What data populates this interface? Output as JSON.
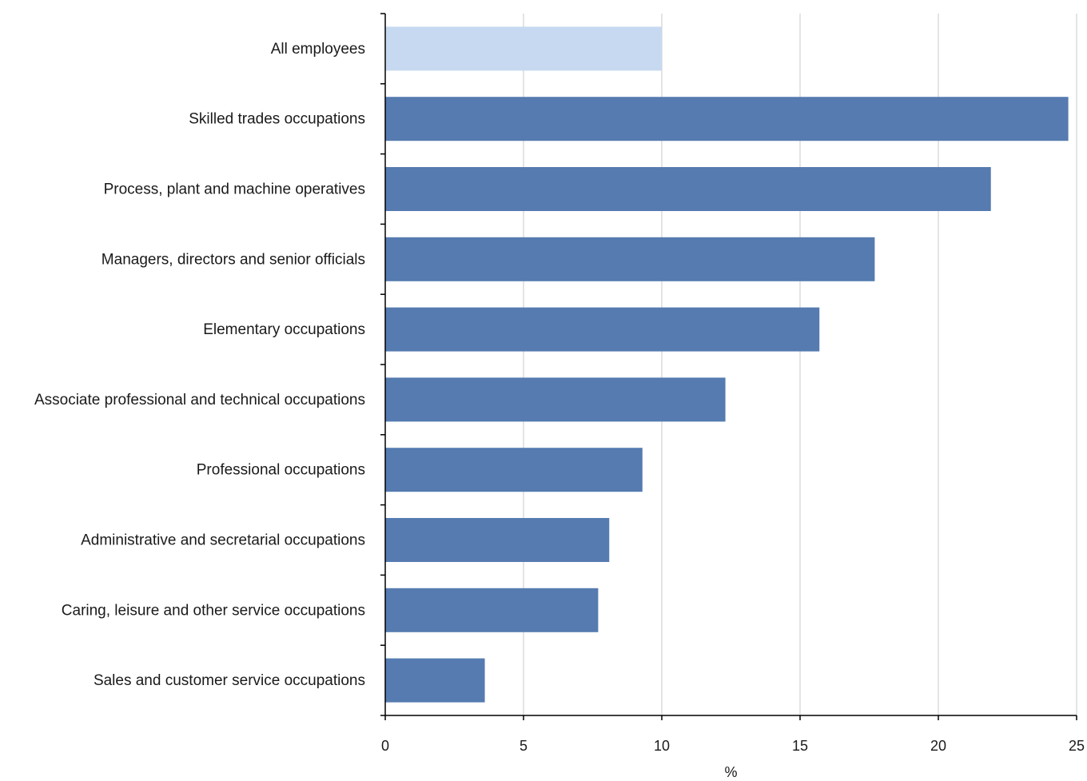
{
  "chart_data": {
    "type": "bar",
    "orientation": "horizontal",
    "categories": [
      "All employees",
      "Skilled trades occupations",
      "Process, plant and machine operatives",
      "Managers, directors and senior officials",
      "Elementary occupations",
      "Associate professional and technical occupations",
      "Professional occupations",
      "Administrative and secretarial occupations",
      "Caring, leisure and other service occupations",
      "Sales and customer service occupations"
    ],
    "values": [
      10.0,
      24.7,
      21.9,
      17.7,
      15.7,
      12.3,
      9.3,
      8.1,
      7.7,
      3.6
    ],
    "colors": [
      "#c6d9f0",
      "#557bb0",
      "#557bb0",
      "#557bb0",
      "#557bb0",
      "#557bb0",
      "#557bb0",
      "#557bb0",
      "#557bb0",
      "#557bb0"
    ],
    "xlabel": "%",
    "xlim": [
      0,
      25
    ],
    "xticks": [
      0,
      5,
      10,
      15,
      20,
      25
    ],
    "xtick_labels": [
      "0",
      "5",
      "10",
      "15",
      "20",
      "25"
    ],
    "grid": "vertical",
    "legend": "none"
  }
}
